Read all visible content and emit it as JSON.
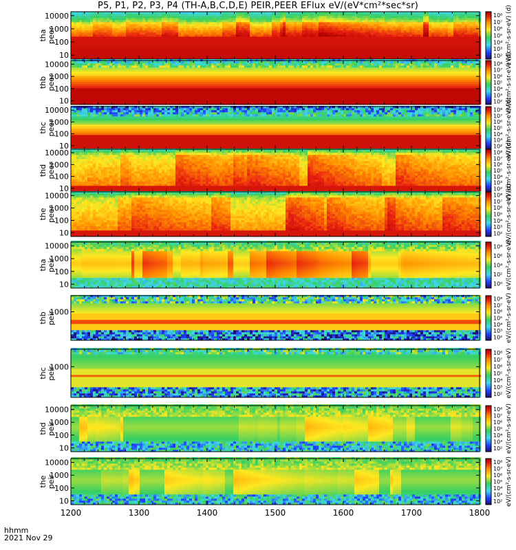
{
  "title": "P5, P1, P2, P3, P4 (TH-A,B,C,D,E) PEIR,PEER EFlux eV/(eV*cm²*sec*sr)",
  "footer": {
    "time_label": "hhmm",
    "date_label": "2021 Nov 29"
  },
  "chart_data": [
    {
      "type": "heatmap",
      "probe": "tha",
      "species": "peer",
      "ylabel": [
        "tha",
        "peer"
      ],
      "y_ticks": [
        "10",
        "100",
        "1000",
        "10000"
      ],
      "x_range": [
        1200,
        1800
      ],
      "y_log": true,
      "colorbar_ticks": [
        "10²",
        "10³",
        "10⁴",
        "10⁵",
        "10⁶",
        "10⁷",
        "10⁸"
      ],
      "colorbar_label": "eV/(cm²-s-sr-eV) (d)",
      "style": "bursty_red"
    },
    {
      "type": "heatmap",
      "probe": "thb",
      "species": "peer",
      "ylabel": [
        "thb",
        "peer"
      ],
      "y_ticks": [
        "10",
        "100",
        "1000",
        "10000"
      ],
      "x_range": [
        1200,
        1800
      ],
      "y_log": true,
      "colorbar_ticks": [
        "10²",
        "10³",
        "10⁴",
        "10⁵",
        "10⁶",
        "10⁷",
        "10⁸"
      ],
      "colorbar_label": "eV/(cm²-s-sr-eV) (d)",
      "style": "uniform_band"
    },
    {
      "type": "heatmap",
      "probe": "thc",
      "species": "peer",
      "ylabel": [
        "thc",
        "peer"
      ],
      "y_ticks": [
        "10",
        "100",
        "1000",
        "10000"
      ],
      "x_range": [
        1200,
        1800
      ],
      "y_log": true,
      "colorbar_ticks": [
        "10²",
        "10³",
        "10⁴",
        "10⁵",
        "10⁶",
        "10⁷",
        "10⁸"
      ],
      "colorbar_label": "eV/(cm²-s-sr-eV) (d)",
      "style": "low_energy"
    },
    {
      "type": "heatmap",
      "probe": "thd",
      "species": "peer",
      "ylabel": [
        "thd",
        "peer"
      ],
      "y_ticks": [
        "10",
        "100",
        "1000",
        "10000"
      ],
      "x_range": [
        1200,
        1800
      ],
      "y_log": true,
      "colorbar_ticks": [
        "10²",
        "10³",
        "10⁴",
        "10⁵",
        "10⁶",
        "10⁷",
        "10⁸"
      ],
      "colorbar_label": "eV/(cm²-s-sr-eV) (d)",
      "style": "bursty_wide"
    },
    {
      "type": "heatmap",
      "probe": "the",
      "species": "peer",
      "ylabel": [
        "the",
        "peer"
      ],
      "y_ticks": [
        "10",
        "100",
        "1000",
        "10000"
      ],
      "x_range": [
        1200,
        1800
      ],
      "y_log": true,
      "colorbar_ticks": [
        "10²",
        "10³",
        "10⁴",
        "10⁵",
        "10⁶",
        "10⁷",
        "10⁸"
      ],
      "colorbar_label": "eV/(cm²-s-sr-eV) (d)",
      "style": "bursty_wide"
    },
    {
      "type": "heatmap",
      "probe": "tha",
      "species": "peir",
      "ylabel": [
        "tha",
        "peir"
      ],
      "y_ticks": [
        "10",
        "100",
        "1000",
        "10000"
      ],
      "x_range": [
        1200,
        1800
      ],
      "y_log": true,
      "colorbar_ticks": [
        "10⁰",
        "10²",
        "10⁴",
        "10⁶",
        "10⁸"
      ],
      "colorbar_label": "eV/(cm²-s-sr-eV)",
      "style": "ion_patchy"
    },
    {
      "type": "heatmap",
      "probe": "thb",
      "species": "peir",
      "ylabel": [
        "thb",
        "peir"
      ],
      "y_ticks": [
        "1000"
      ],
      "x_range": [
        1200,
        1800
      ],
      "y_log": true,
      "colorbar_ticks": [
        "10²",
        "10³",
        "10⁴",
        "10⁵",
        "10⁶",
        "10⁷",
        "10⁸"
      ],
      "colorbar_label": "eV/(cm²-s-sr-eV)",
      "style": "ion_band"
    },
    {
      "type": "heatmap",
      "probe": "thc",
      "species": "peir",
      "ylabel": [
        "thc",
        "peir"
      ],
      "y_ticks": [
        "1000"
      ],
      "x_range": [
        1200,
        1800
      ],
      "y_log": true,
      "colorbar_ticks": [
        "10²",
        "10³",
        "10⁴",
        "10⁵",
        "10⁶",
        "10⁷",
        "10⁸"
      ],
      "colorbar_label": "eV/(cm²-s-sr-eV)",
      "style": "ion_band_thin"
    },
    {
      "type": "heatmap",
      "probe": "thd",
      "species": "peir",
      "ylabel": [
        "thd",
        "peir"
      ],
      "y_ticks": [
        "10",
        "100",
        "1000",
        "10000"
      ],
      "x_range": [
        1200,
        1800
      ],
      "y_log": true,
      "colorbar_ticks": [
        "10²",
        "10³",
        "10⁴",
        "10⁵",
        "10⁶",
        "10⁷",
        "10⁸"
      ],
      "colorbar_label": "eV/(cm²-s-sr-eV)",
      "style": "ion_green"
    },
    {
      "type": "heatmap",
      "probe": "the",
      "species": "peir",
      "ylabel": [
        "the",
        "peir"
      ],
      "y_ticks": [
        "10",
        "100",
        "1000",
        "10000"
      ],
      "x_range": [
        1200,
        1800
      ],
      "y_log": true,
      "colorbar_ticks": [
        "10²",
        "10³",
        "10⁴",
        "10⁵",
        "10⁶",
        "10⁷",
        "10⁸"
      ],
      "colorbar_label": "eV/(cm²-s-sr-eV)",
      "style": "ion_green"
    }
  ],
  "x_axis": {
    "ticks": [
      1200,
      1300,
      1400,
      1500,
      1600,
      1700,
      1800
    ]
  },
  "colors": {
    "dark_red": "#b00000",
    "red": "#e82010",
    "orange": "#ff8c00",
    "yellow": "#ffe820",
    "green": "#38d060",
    "cyan": "#40d8e8",
    "blue": "#2040ff",
    "navy": "#101070",
    "black": "#000000"
  }
}
